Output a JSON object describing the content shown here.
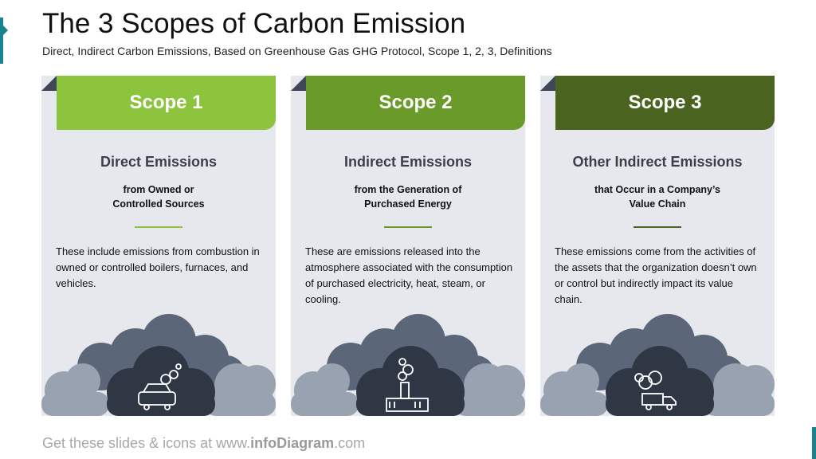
{
  "title": "The 3 Scopes of Carbon Emission",
  "subtitle": "Direct, Indirect Carbon Emissions, Based on Greenhouse Gas GHG Protocol, Scope 1, 2, 3, Definitions",
  "colors": {
    "scope1": "#8cc43e",
    "scope2": "#6a9a2a",
    "scope3": "#4a6420",
    "card_bg": "#e6e8ed",
    "cloud_dark": "#2f3744",
    "cloud_mid": "#5b6678",
    "cloud_light": "#98a2b0",
    "accent": "#17838f"
  },
  "cards": [
    {
      "tab": "Scope 1",
      "heading": "Direct Emissions",
      "sub": "from Owned or\nControlled Sources",
      "desc": "These include emissions from combustion in owned or controlled boilers, furnaces, and vehicles.",
      "icon": "car-exhaust-icon"
    },
    {
      "tab": "Scope 2",
      "heading": "Indirect Emissions",
      "sub": "from the Generation of\nPurchased Energy",
      "desc": "These are emissions released into the atmosphere associated with the consumption of purchased electricity, heat, steam, or cooling.",
      "icon": "factory-smoke-icon"
    },
    {
      "tab": "Scope 3",
      "heading": "Other Indirect Emissions",
      "sub": "that Occur in a Company’s\nValue Chain",
      "desc": "These emissions come from the activities of the assets that the organization doesn’t own or control but indirectly impact its value chain.",
      "icon": "truck-smoke-icon"
    }
  ],
  "footer": {
    "prefix": "Get these slides & icons at www.",
    "brand": "infoDiagram",
    "suffix": ".com"
  }
}
